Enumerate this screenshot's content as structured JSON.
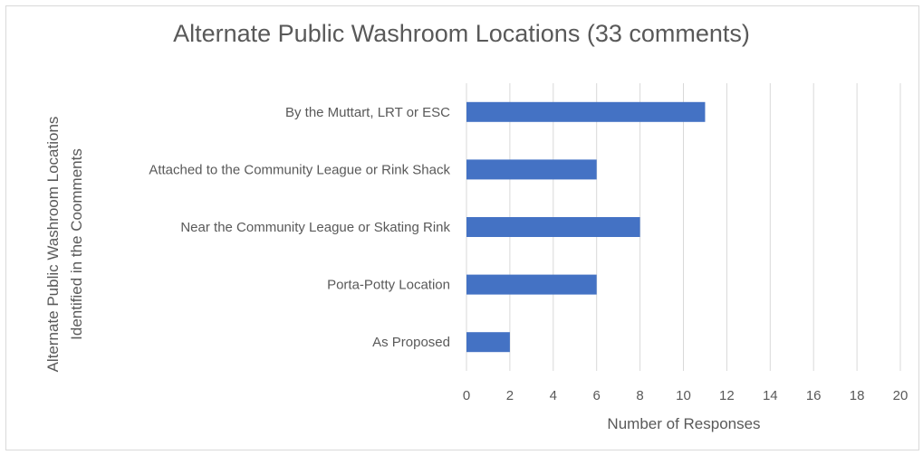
{
  "chart_data": {
    "type": "bar",
    "orientation": "horizontal",
    "title": "Alternate Public Washroom Locations (33 comments)",
    "xlabel": "Number of Responses",
    "ylabel_line1": "Alternate Public Washroom  Locations",
    "ylabel_line2": "Identified in the Coomments",
    "categories": [
      "By the Muttart, LRT or ESC",
      "Attached to the Community League or Rink Shack",
      "Near the Community League or Skating Rink",
      "Porta-Potty Location",
      "As Proposed"
    ],
    "values": [
      11,
      6,
      8,
      6,
      2
    ],
    "xlim": [
      0,
      20
    ],
    "xticks": [
      "0",
      "2",
      "4",
      "6",
      "8",
      "10",
      "12",
      "14",
      "16",
      "18",
      "20"
    ],
    "grid": true,
    "legend": "none",
    "bar_color": "#4472c4",
    "grid_color": "#d9d9d9"
  }
}
